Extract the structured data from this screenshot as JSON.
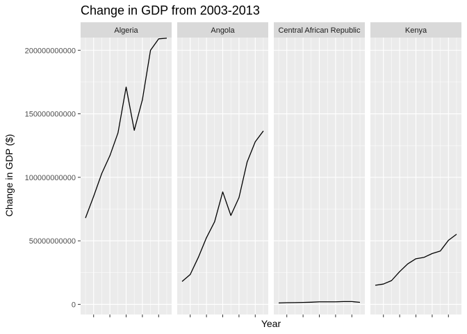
{
  "chart_data": {
    "type": "line",
    "title": "Change in GDP from 2003-2013",
    "xlabel": "Year",
    "ylabel": "Change in GDP ($)",
    "ylim": [
      -8000000000,
      210000000000
    ],
    "xlim": [
      2002.4,
      2013.6
    ],
    "y_ticks": [
      0,
      50000000000,
      100000000000,
      150000000000,
      200000000000
    ],
    "y_tick_labels": [
      "0",
      "50000000000",
      "100000000000",
      "150000000000",
      "200000000000"
    ],
    "x_ticks": [
      2002,
      2004,
      2006,
      2008,
      2010,
      2012
    ],
    "x_tick_labels": [
      "",
      "",
      "",
      "",
      "",
      ""
    ],
    "grid": true,
    "line_color": "#000000",
    "panel_background": "#ebebeb",
    "strip_background": "#d9d9d9",
    "x": [
      2003,
      2004,
      2005,
      2006,
      2007,
      2008,
      2009,
      2010,
      2011,
      2012,
      2013
    ],
    "facets": [
      {
        "name": "Algeria",
        "values": [
          68000000000,
          85000000000,
          103000000000,
          117000000000,
          135000000000,
          171000000000,
          137000000000,
          161000000000,
          200000000000,
          209000000000,
          209500000000
        ]
      },
      {
        "name": "Angola",
        "values": [
          18000000000,
          23500000000,
          37000000000,
          52500000000,
          65000000000,
          88500000000,
          70000000000,
          84000000000,
          112000000000,
          128000000000,
          136500000000
        ]
      },
      {
        "name": "Central African Republic",
        "values": [
          1100000000,
          1300000000,
          1400000000,
          1500000000,
          1700000000,
          2000000000,
          2000000000,
          2000000000,
          2200000000,
          2200000000,
          1600000000
        ]
      },
      {
        "name": "Kenya",
        "values": [
          15000000000,
          16000000000,
          18700000000,
          25800000000,
          31900000000,
          35900000000,
          37000000000,
          40000000000,
          42000000000,
          50400000000,
          55200000000
        ]
      }
    ]
  }
}
